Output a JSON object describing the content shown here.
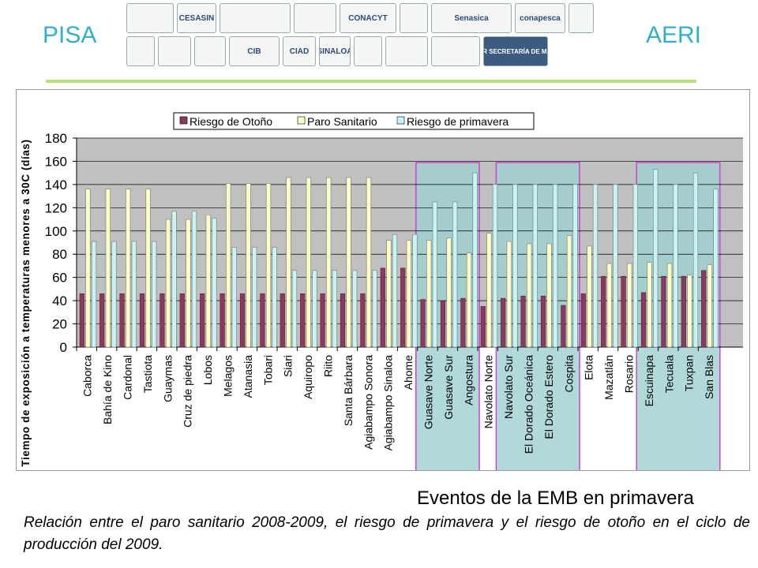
{
  "header": {
    "left_brand": "PISA",
    "right_brand": "AERI",
    "logos_row1": [
      "",
      "CESASIN",
      "",
      "",
      "CONACYT",
      "",
      "Senasica",
      "conapesca",
      ""
    ],
    "logos_row2": [
      "",
      "",
      "",
      "CIB",
      "CIAD",
      "SINALOA",
      "",
      "",
      "",
      "SEMAR SECRETARÍA DE MARINA"
    ]
  },
  "colors": {
    "autumn": "#8b3a5e",
    "sanitary": "#ffffc8",
    "spring": "#c8f4f4",
    "plot_bg": "#c0c0c0",
    "highlight_fill": "#9fcfcf",
    "highlight_border": "#cc44cc",
    "brand": "#33b0c8"
  },
  "chart_data": {
    "type": "bar",
    "ylabel": "Tiempo de exposición a temperaturas menores a 30C (días)",
    "ylim": [
      0,
      180
    ],
    "yticks": [
      0,
      20,
      40,
      60,
      80,
      100,
      120,
      140,
      160,
      180
    ],
    "grid": true,
    "legend_position": "top",
    "categories": [
      "Caborca",
      "Bahía de Kino",
      "Cardonal",
      "Tastiota",
      "Guaymas",
      "Cruz de piedra",
      "Lobos",
      "Melagos",
      "Atanasia",
      "Tobari",
      "Siari",
      "Aquiropo",
      "Riito",
      "Santa Bárbara",
      "Agiabampo Sonora",
      "Agiabampo Sinaloa",
      "Ahome",
      "Guasave Norte",
      "Guasave Sur",
      "Angostura",
      "Navolato Norte",
      "Navolato Sur",
      "El Dorado Oceánica",
      "El Dorado Estero",
      "Cospita",
      "Elota",
      "Mazatlán",
      "Rosario",
      "Escuinapa",
      "Tecuala",
      "Tuxpan",
      "San Blas"
    ],
    "series": [
      {
        "name": "Riesgo de Otoño",
        "values": [
          46,
          46,
          46,
          46,
          46,
          46,
          46,
          46,
          46,
          46,
          46,
          46,
          46,
          46,
          46,
          68,
          68,
          41,
          40,
          42,
          35,
          42,
          44,
          44,
          36,
          46,
          61,
          61,
          47,
          61,
          61,
          66
        ]
      },
      {
        "name": "Paro Sanitario",
        "values": [
          136,
          136,
          136,
          136,
          110,
          110,
          114,
          141,
          141,
          141,
          146,
          146,
          146,
          146,
          146,
          92,
          92,
          92,
          94,
          81,
          98,
          91,
          89,
          89,
          96,
          87,
          72,
          72,
          73,
          72,
          62,
          71
        ]
      },
      {
        "name": "Riesgo de primavera",
        "values": [
          91,
          91,
          91,
          91,
          117,
          117,
          111,
          86,
          86,
          86,
          66,
          66,
          66,
          66,
          66,
          97,
          97,
          125,
          125,
          150,
          140,
          140,
          140,
          140,
          140,
          140,
          140,
          140,
          153,
          140,
          150,
          136
        ]
      }
    ],
    "highlight_groups": [
      [
        17,
        19
      ],
      [
        21,
        24
      ],
      [
        28,
        31
      ]
    ]
  },
  "captions": {
    "events": "Eventos de la EMB en primavera",
    "description": "Relación entre el paro sanitario 2008-2009, el riesgo de primavera y el riesgo de otoño en el ciclo de producción del 2009."
  }
}
